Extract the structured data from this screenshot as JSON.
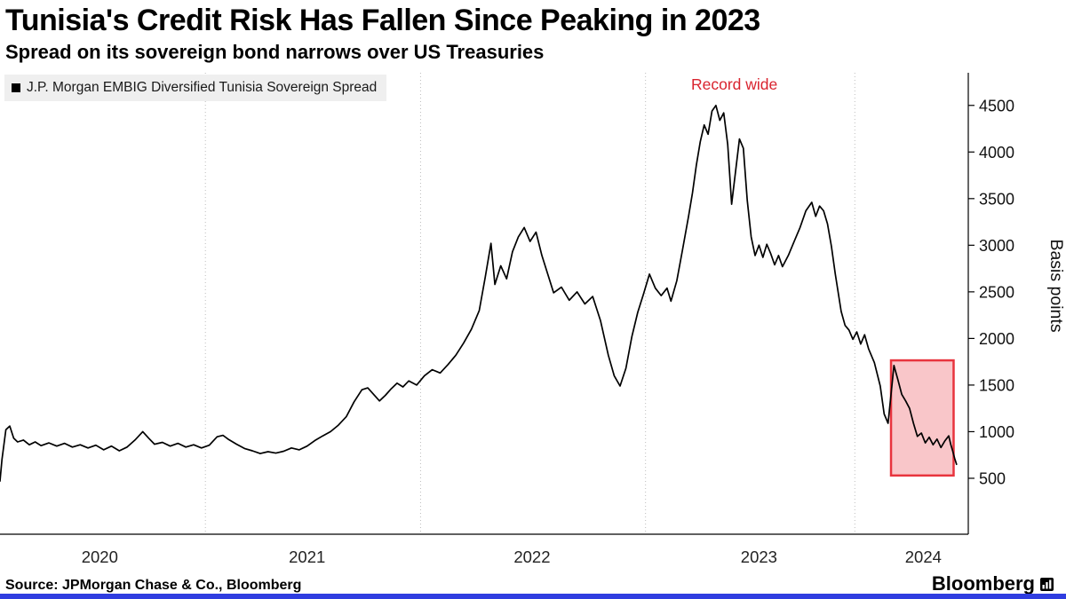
{
  "footer": {
    "source": "Source: JPMorgan Chase & Co., Bloomberg",
    "brand": "Bloomberg"
  },
  "colors": {
    "line": "#000000",
    "annotation_red": "#d9232e",
    "highlight_stroke": "#e8343e",
    "highlight_fill": "rgba(232,52,62,0.28)",
    "legend_marker": "#000000",
    "legend_background": "#efefef",
    "footer_bar_blue": "#2f3de0",
    "gridline": "#bdbdbd",
    "axis": "#000000"
  },
  "chart_data": {
    "type": "line",
    "title": "Tunisia's Credit Risk Has Fallen Since Peaking in 2023",
    "subtitle": "Spread on its sovereign bond narrows over US Treasuries",
    "ylabel": "Basis points",
    "xlabel": "",
    "legend_position": "top-left",
    "grid": "vertical-dotted",
    "xlim": [
      2019.55,
      2024.5
    ],
    "ylim": [
      -100,
      4850
    ],
    "yticks": [
      500,
      1000,
      1500,
      2000,
      2500,
      3000,
      3500,
      4000,
      4500
    ],
    "xticks": [
      {
        "label": "2020",
        "value": 2020.06
      },
      {
        "label": "2021",
        "value": 2021.12
      },
      {
        "label": "2022",
        "value": 2022.27
      },
      {
        "label": "2023",
        "value": 2023.43
      },
      {
        "label": "2024",
        "value": 2024.27
      }
    ],
    "x_gridlines": [
      2020.6,
      2021.7,
      2022.85,
      2023.92
    ],
    "annotations": [
      {
        "text": "Record wide",
        "x": 2023.21,
        "y": 4500,
        "color": "#d9232e"
      }
    ],
    "highlight_box": {
      "x0": 2024.105,
      "x1": 2024.425,
      "y0": 530,
      "y1": 1765,
      "stroke": "#e8343e",
      "fill": "rgba(232,52,62,0.28)",
      "meaning": "recent narrowing of the spread"
    },
    "series": [
      {
        "name": "J.P. Morgan EMBIG Diversified Tunisia Sovereign Spread",
        "color": "#000000",
        "units": "basis points",
        "points": [
          [
            2019.55,
            470
          ],
          [
            2019.56,
            700
          ],
          [
            2019.58,
            1020
          ],
          [
            2019.6,
            1060
          ],
          [
            2019.62,
            930
          ],
          [
            2019.64,
            890
          ],
          [
            2019.67,
            910
          ],
          [
            2019.7,
            860
          ],
          [
            2019.73,
            890
          ],
          [
            2019.76,
            850
          ],
          [
            2019.8,
            880
          ],
          [
            2019.84,
            845
          ],
          [
            2019.88,
            875
          ],
          [
            2019.92,
            835
          ],
          [
            2019.96,
            860
          ],
          [
            2020.0,
            825
          ],
          [
            2020.04,
            855
          ],
          [
            2020.08,
            805
          ],
          [
            2020.12,
            845
          ],
          [
            2020.16,
            795
          ],
          [
            2020.2,
            835
          ],
          [
            2020.24,
            910
          ],
          [
            2020.28,
            1000
          ],
          [
            2020.31,
            930
          ],
          [
            2020.34,
            865
          ],
          [
            2020.38,
            885
          ],
          [
            2020.42,
            845
          ],
          [
            2020.46,
            875
          ],
          [
            2020.5,
            835
          ],
          [
            2020.54,
            860
          ],
          [
            2020.58,
            825
          ],
          [
            2020.62,
            855
          ],
          [
            2020.66,
            945
          ],
          [
            2020.69,
            960
          ],
          [
            2020.72,
            915
          ],
          [
            2020.76,
            865
          ],
          [
            2020.8,
            820
          ],
          [
            2020.84,
            795
          ],
          [
            2020.88,
            765
          ],
          [
            2020.92,
            785
          ],
          [
            2020.96,
            770
          ],
          [
            2021.0,
            790
          ],
          [
            2021.04,
            825
          ],
          [
            2021.08,
            805
          ],
          [
            2021.12,
            845
          ],
          [
            2021.16,
            905
          ],
          [
            2021.2,
            955
          ],
          [
            2021.24,
            1000
          ],
          [
            2021.28,
            1070
          ],
          [
            2021.32,
            1160
          ],
          [
            2021.36,
            1320
          ],
          [
            2021.4,
            1450
          ],
          [
            2021.43,
            1470
          ],
          [
            2021.46,
            1400
          ],
          [
            2021.49,
            1330
          ],
          [
            2021.52,
            1390
          ],
          [
            2021.55,
            1460
          ],
          [
            2021.58,
            1520
          ],
          [
            2021.61,
            1480
          ],
          [
            2021.64,
            1545
          ],
          [
            2021.68,
            1500
          ],
          [
            2021.72,
            1600
          ],
          [
            2021.76,
            1665
          ],
          [
            2021.8,
            1630
          ],
          [
            2021.84,
            1720
          ],
          [
            2021.88,
            1820
          ],
          [
            2021.92,
            1950
          ],
          [
            2021.96,
            2100
          ],
          [
            2022.0,
            2300
          ],
          [
            2022.03,
            2650
          ],
          [
            2022.06,
            3020
          ],
          [
            2022.08,
            2580
          ],
          [
            2022.11,
            2780
          ],
          [
            2022.14,
            2640
          ],
          [
            2022.17,
            2930
          ],
          [
            2022.2,
            3090
          ],
          [
            2022.23,
            3190
          ],
          [
            2022.26,
            3040
          ],
          [
            2022.29,
            3140
          ],
          [
            2022.32,
            2890
          ],
          [
            2022.35,
            2690
          ],
          [
            2022.38,
            2490
          ],
          [
            2022.42,
            2550
          ],
          [
            2022.46,
            2410
          ],
          [
            2022.5,
            2500
          ],
          [
            2022.54,
            2370
          ],
          [
            2022.58,
            2450
          ],
          [
            2022.62,
            2190
          ],
          [
            2022.66,
            1820
          ],
          [
            2022.69,
            1600
          ],
          [
            2022.72,
            1490
          ],
          [
            2022.75,
            1680
          ],
          [
            2022.78,
            2020
          ],
          [
            2022.81,
            2280
          ],
          [
            2022.84,
            2480
          ],
          [
            2022.87,
            2690
          ],
          [
            2022.9,
            2540
          ],
          [
            2022.93,
            2460
          ],
          [
            2022.96,
            2540
          ],
          [
            2022.98,
            2400
          ],
          [
            2023.01,
            2620
          ],
          [
            2023.04,
            2960
          ],
          [
            2023.07,
            3310
          ],
          [
            2023.09,
            3560
          ],
          [
            2023.11,
            3860
          ],
          [
            2023.13,
            4110
          ],
          [
            2023.15,
            4290
          ],
          [
            2023.17,
            4190
          ],
          [
            2023.19,
            4440
          ],
          [
            2023.21,
            4500
          ],
          [
            2023.23,
            4340
          ],
          [
            2023.25,
            4420
          ],
          [
            2023.27,
            4080
          ],
          [
            2023.29,
            3440
          ],
          [
            2023.31,
            3790
          ],
          [
            2023.33,
            4140
          ],
          [
            2023.35,
            4040
          ],
          [
            2023.37,
            3480
          ],
          [
            2023.39,
            3090
          ],
          [
            2023.41,
            2890
          ],
          [
            2023.43,
            3000
          ],
          [
            2023.45,
            2870
          ],
          [
            2023.47,
            3010
          ],
          [
            2023.49,
            2910
          ],
          [
            2023.51,
            2790
          ],
          [
            2023.53,
            2890
          ],
          [
            2023.55,
            2770
          ],
          [
            2023.58,
            2890
          ],
          [
            2023.61,
            3040
          ],
          [
            2023.64,
            3190
          ],
          [
            2023.67,
            3370
          ],
          [
            2023.7,
            3460
          ],
          [
            2023.72,
            3310
          ],
          [
            2023.74,
            3420
          ],
          [
            2023.76,
            3370
          ],
          [
            2023.78,
            3230
          ],
          [
            2023.8,
            2990
          ],
          [
            2023.82,
            2690
          ],
          [
            2023.85,
            2290
          ],
          [
            2023.87,
            2140
          ],
          [
            2023.89,
            2090
          ],
          [
            2023.91,
            1990
          ],
          [
            2023.93,
            2070
          ],
          [
            2023.95,
            1940
          ],
          [
            2023.97,
            2040
          ],
          [
            2023.99,
            1890
          ],
          [
            2024.02,
            1740
          ],
          [
            2024.05,
            1490
          ],
          [
            2024.07,
            1190
          ],
          [
            2024.09,
            1090
          ],
          [
            2024.11,
            1500
          ],
          [
            2024.12,
            1710
          ],
          [
            2024.14,
            1560
          ],
          [
            2024.16,
            1400
          ],
          [
            2024.18,
            1330
          ],
          [
            2024.2,
            1250
          ],
          [
            2024.22,
            1090
          ],
          [
            2024.24,
            950
          ],
          [
            2024.26,
            985
          ],
          [
            2024.28,
            880
          ],
          [
            2024.3,
            940
          ],
          [
            2024.32,
            860
          ],
          [
            2024.34,
            920
          ],
          [
            2024.36,
            830
          ],
          [
            2024.38,
            900
          ],
          [
            2024.4,
            955
          ],
          [
            2024.41,
            865
          ],
          [
            2024.42,
            795
          ],
          [
            2024.43,
            715
          ],
          [
            2024.44,
            650
          ]
        ]
      }
    ]
  }
}
